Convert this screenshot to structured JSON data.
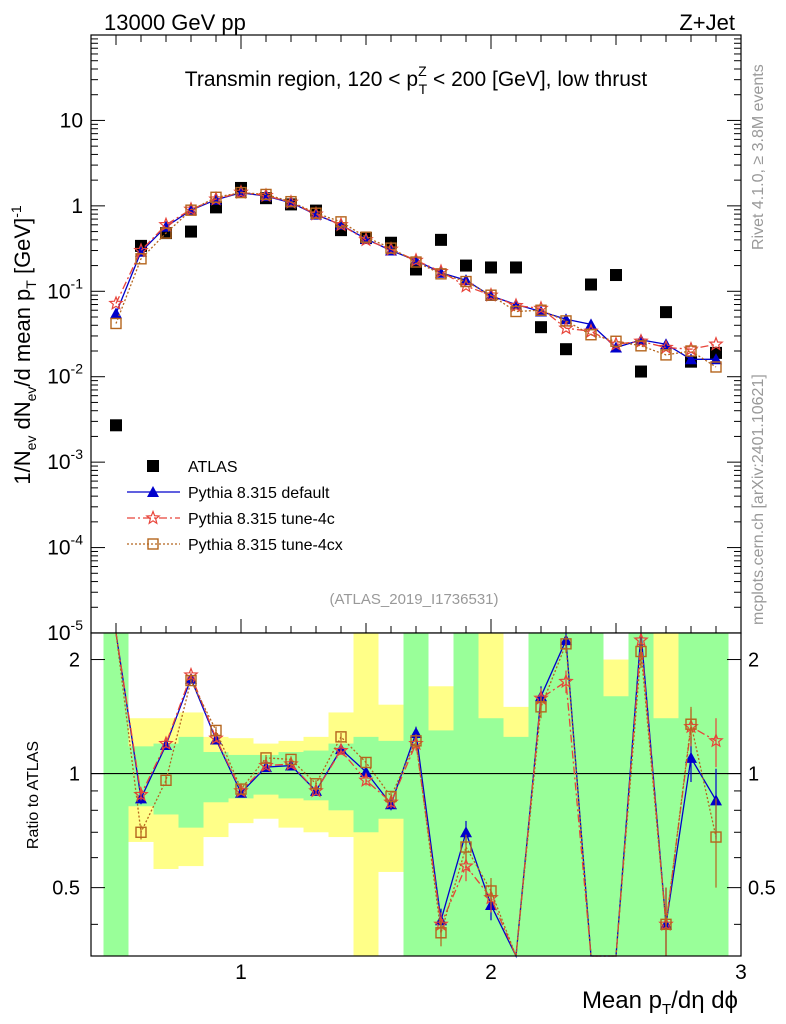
{
  "header": {
    "left": "13000 GeV pp",
    "right": "Z+Jet",
    "side_top": "Rivet 4.1.0, ≥ 3.8M events",
    "side_bottom": "mcplots.cern.ch [arXiv:2401.10621]"
  },
  "chart_data": {
    "type": "scatter",
    "title_parts": {
      "before": "Transmin region, 120 < p",
      "sup": "Z",
      "sub": "T",
      "after": " < 200 [GeV], low thrust"
    },
    "analysis_tag": "(ATLAS_2019_I1736531)",
    "ylabel_parts": {
      "a": "1/N",
      "a_sub": "ev",
      "b": " dN",
      "b_sub": "ev",
      "c": "/d mean p",
      "c_sub": "T",
      "d": " [GeV]",
      "d_sup": "-1"
    },
    "xlabel_parts": {
      "a": "Mean p",
      "a_sub": "T",
      "b": "/dη dϕ"
    },
    "ratio_ylabel": "Ratio to ATLAS",
    "xlim": [
      0.4,
      3.0
    ],
    "ylim": [
      1e-05,
      100
    ],
    "ratio_ylim": [
      0.33,
      2.35
    ],
    "x_ticks": [
      1,
      2,
      3
    ],
    "x_tick_labels": [
      "1",
      "2",
      "3"
    ],
    "y_ticks": [
      {
        "base": "10",
        "exp": "-5",
        "v": 1e-05
      },
      {
        "base": "10",
        "exp": "-4",
        "v": 0.0001
      },
      {
        "base": "10",
        "exp": "-3",
        "v": 0.001
      },
      {
        "base": "10",
        "exp": "-2",
        "v": 0.01
      },
      {
        "base": "10",
        "exp": "-1",
        "v": 0.1
      },
      {
        "base": "1",
        "exp": "",
        "v": 1
      },
      {
        "base": "10",
        "exp": "",
        "v": 10
      }
    ],
    "ratio_ticks": [
      0.5,
      1,
      2
    ],
    "ratio_tick_labels": [
      "0.5",
      "1",
      "2"
    ],
    "x": [
      0.5,
      0.6,
      0.7,
      0.8,
      0.9,
      1.0,
      1.1,
      1.2,
      1.3,
      1.4,
      1.5,
      1.6,
      1.7,
      1.8,
      1.9,
      2.0,
      2.1,
      2.2,
      2.3,
      2.4,
      2.5,
      2.6,
      2.7,
      2.8,
      2.9
    ],
    "series": [
      {
        "name": "ATLAS",
        "color": "#000000",
        "marker": "square-filled",
        "values": [
          0.0027,
          0.34,
          0.48,
          0.5,
          0.96,
          1.62,
          1.23,
          1.04,
          0.88,
          0.52,
          0.42,
          0.37,
          0.18,
          0.4,
          0.2,
          0.19,
          0.19,
          0.038,
          0.021,
          0.12,
          0.155,
          0.0115,
          0.057,
          0.015,
          0.019
        ]
      },
      {
        "name": "Pythia 8.315 default",
        "color": "#0000cc",
        "marker": "triangle-filled",
        "dash": "",
        "values": [
          0.055,
          0.29,
          0.57,
          0.89,
          1.18,
          1.42,
          1.3,
          1.09,
          0.79,
          0.6,
          0.41,
          0.3,
          0.23,
          0.165,
          0.135,
          0.088,
          0.07,
          0.058,
          0.047,
          0.041,
          0.022,
          0.027,
          0.024,
          0.016,
          0.016
        ],
        "ratio": [
          2.4,
          0.86,
          1.19,
          1.78,
          1.23,
          0.89,
          1.04,
          1.05,
          0.9,
          1.16,
          1.01,
          0.83,
          1.28,
          0.41,
          0.7,
          0.45,
          0.3,
          1.6,
          2.25,
          0.3,
          0.3,
          2.35,
          0.4,
          1.1,
          0.85
        ],
        "ratio_err": [
          0,
          0.03,
          0.03,
          0.03,
          0.03,
          0.02,
          0.02,
          0.02,
          0.02,
          0.03,
          0.03,
          0.03,
          0.05,
          0.03,
          0.05,
          0.04,
          0,
          0.1,
          0.12,
          0,
          0,
          0.2,
          0.1,
          0.15,
          0.18
        ]
      },
      {
        "name": "Pythia 8.315 tune-4c",
        "color": "#e8443a",
        "marker": "star-open",
        "dash": "8,3,2,3",
        "values": [
          0.072,
          0.3,
          0.6,
          0.91,
          1.2,
          1.44,
          1.32,
          1.1,
          0.8,
          0.6,
          0.4,
          0.31,
          0.23,
          0.17,
          0.115,
          0.09,
          0.068,
          0.063,
          0.037,
          0.034,
          0.024,
          0.026,
          0.022,
          0.021,
          0.024
        ],
        "ratio": [
          2.4,
          0.88,
          1.2,
          1.82,
          1.24,
          0.9,
          1.05,
          1.06,
          0.9,
          1.15,
          0.96,
          0.84,
          1.2,
          0.4,
          0.57,
          0.47,
          0.3,
          1.58,
          1.75,
          0.3,
          0.3,
          2.25,
          0.4,
          1.33,
          1.22
        ],
        "ratio_err": [
          0,
          0.03,
          0.03,
          0.03,
          0.03,
          0.02,
          0.02,
          0.02,
          0.02,
          0.03,
          0.03,
          0.03,
          0.05,
          0.03,
          0.05,
          0.04,
          0,
          0.1,
          0.12,
          0,
          0,
          0.2,
          0.1,
          0.15,
          0.18
        ]
      },
      {
        "name": "Pythia 8.315 tune-4cx",
        "color": "#b5651d",
        "marker": "square-open",
        "dash": "2,2",
        "values": [
          0.042,
          0.24,
          0.48,
          0.89,
          1.26,
          1.43,
          1.36,
          1.12,
          0.82,
          0.65,
          0.43,
          0.32,
          0.22,
          0.16,
          0.13,
          0.09,
          0.058,
          0.06,
          0.045,
          0.031,
          0.026,
          0.023,
          0.018,
          0.02,
          0.013
        ],
        "ratio": [
          2.4,
          0.7,
          0.96,
          1.76,
          1.3,
          0.91,
          1.1,
          1.09,
          0.94,
          1.25,
          1.07,
          0.87,
          1.22,
          0.38,
          0.64,
          0.49,
          0.3,
          1.5,
          2.2,
          0.3,
          0.3,
          2.1,
          0.4,
          1.35,
          0.68
        ],
        "ratio_err": [
          0,
          0.03,
          0.03,
          0.03,
          0.03,
          0.02,
          0.02,
          0.02,
          0.02,
          0.03,
          0.03,
          0.03,
          0.05,
          0.03,
          0.05,
          0.04,
          0,
          0.1,
          0.12,
          0,
          0,
          0.2,
          0.1,
          0.15,
          0.18
        ]
      }
    ],
    "bands": {
      "x_edges": [
        0.45,
        0.55,
        0.65,
        0.75,
        0.85,
        0.95,
        1.05,
        1.15,
        1.25,
        1.35,
        1.45,
        1.55,
        1.65,
        1.75,
        1.85,
        1.95,
        2.05,
        2.15,
        2.25,
        2.35,
        2.45,
        2.55,
        2.65,
        2.75,
        2.85,
        2.95
      ],
      "green_lo": [
        0.33,
        0.82,
        0.78,
        0.72,
        0.84,
        0.86,
        0.88,
        0.86,
        0.85,
        0.8,
        0.7,
        0.76,
        0.33,
        0.33,
        0.33,
        0.33,
        0.33,
        0.33,
        0.33,
        0.33,
        0.33,
        0.33,
        0.33,
        0.33,
        0.33
      ],
      "green_hi": [
        2.35,
        1.18,
        1.2,
        1.25,
        1.14,
        1.12,
        1.12,
        1.14,
        1.15,
        1.2,
        1.25,
        1.22,
        2.35,
        1.3,
        2.35,
        1.4,
        1.25,
        2.35,
        2.35,
        2.35,
        1.6,
        2.35,
        1.4,
        2.35,
        2.35
      ],
      "yellow_lo": [
        0.33,
        0.66,
        0.56,
        0.57,
        0.68,
        0.74,
        0.76,
        0.72,
        0.7,
        0.68,
        0.33,
        0.55,
        0.33,
        0.33,
        0.33,
        0.33,
        0.33,
        0.33,
        0.33,
        0.33,
        0.33,
        0.33,
        0.33,
        0.33,
        0.33
      ],
      "yellow_hi": [
        2.35,
        1.4,
        1.4,
        1.45,
        1.25,
        1.24,
        1.2,
        1.22,
        1.25,
        1.45,
        2.35,
        1.52,
        2.35,
        1.7,
        2.35,
        2.35,
        1.5,
        2.35,
        2.35,
        2.35,
        2.0,
        2.35,
        2.35,
        2.35,
        2.35
      ]
    }
  }
}
